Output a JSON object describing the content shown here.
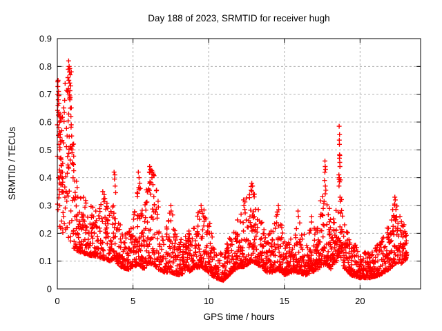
{
  "window": {
    "background": "#ffffff"
  },
  "chart_data": {
    "type": "scatter",
    "title": "Day 188 of 2023, SRMTID for receiver hugh",
    "xlabel": "GPS time / hours",
    "ylabel": "SRMTID / TECUs",
    "xlim": [
      0,
      24
    ],
    "ylim": [
      0,
      0.9
    ],
    "xticks": {
      "values": [
        0,
        5,
        10,
        15,
        20
      ],
      "labels": [
        "0",
        "5",
        "10",
        "15",
        "20"
      ]
    },
    "yticks": {
      "values": [
        0,
        0.1,
        0.2,
        0.3,
        0.4,
        0.5,
        0.6,
        0.7,
        0.8,
        0.9
      ],
      "labels": [
        "0",
        "0.1",
        "0.2",
        "0.3",
        "0.4",
        "0.5",
        "0.6",
        "0.7",
        "0.8",
        "0.9"
      ]
    },
    "grid": {
      "x": [
        5,
        10,
        15,
        20
      ],
      "y": [
        0.1,
        0.2,
        0.3,
        0.4,
        0.5,
        0.6,
        0.7,
        0.8
      ],
      "color": "#b0b0b0",
      "dash": "3,3"
    },
    "marker": {
      "shape": "plus",
      "color": "#ff0000",
      "size": 7,
      "stroke_width": 1.4
    },
    "series_name": "SRMTID",
    "legend": "none",
    "sampling": {
      "t_start": 0.0,
      "t_end": 23.1,
      "step_hours": 0.0166667,
      "seed": 20230188,
      "extra_point_prob": 0.5,
      "streak_prob": 0.08
    },
    "envelope": [
      [
        0.0,
        0.2,
        0.78,
        1.2
      ],
      [
        0.35,
        0.2,
        0.62,
        1.6
      ],
      [
        0.6,
        0.2,
        0.8,
        1.4
      ],
      [
        0.95,
        0.16,
        0.82,
        1.8
      ],
      [
        1.15,
        0.14,
        0.42,
        2.2
      ],
      [
        1.6,
        0.13,
        0.34,
        2.4
      ],
      [
        2.2,
        0.12,
        0.3,
        2.4
      ],
      [
        3.0,
        0.11,
        0.36,
        2.5
      ],
      [
        3.5,
        0.1,
        0.28,
        2.4
      ],
      [
        3.8,
        0.11,
        0.42,
        2.6
      ],
      [
        4.1,
        0.08,
        0.24,
        2.4
      ],
      [
        4.7,
        0.07,
        0.2,
        2.3
      ],
      [
        5.1,
        0.08,
        0.3,
        2.5
      ],
      [
        5.4,
        0.09,
        0.43,
        2.7
      ],
      [
        5.7,
        0.07,
        0.26,
        2.4
      ],
      [
        6.0,
        0.09,
        0.44,
        2.3
      ],
      [
        6.35,
        0.09,
        0.43,
        2.4
      ],
      [
        6.7,
        0.07,
        0.32,
        2.5
      ],
      [
        7.1,
        0.06,
        0.2,
        2.4
      ],
      [
        7.5,
        0.06,
        0.3,
        2.7
      ],
      [
        8.0,
        0.05,
        0.17,
        2.3
      ],
      [
        8.6,
        0.06,
        0.2,
        2.3
      ],
      [
        9.0,
        0.07,
        0.24,
        2.3
      ],
      [
        9.5,
        0.08,
        0.3,
        2.4
      ],
      [
        10.0,
        0.06,
        0.26,
        2.5
      ],
      [
        10.4,
        0.04,
        0.15,
        2.3
      ],
      [
        11.0,
        0.03,
        0.14,
        2.3
      ],
      [
        11.5,
        0.06,
        0.2,
        2.4
      ],
      [
        12.0,
        0.08,
        0.26,
        2.4
      ],
      [
        12.4,
        0.08,
        0.33,
        2.5
      ],
      [
        12.85,
        0.1,
        0.38,
        2.4
      ],
      [
        13.2,
        0.09,
        0.3,
        2.5
      ],
      [
        13.8,
        0.06,
        0.2,
        2.4
      ],
      [
        14.3,
        0.06,
        0.22,
        2.5
      ],
      [
        14.6,
        0.07,
        0.31,
        2.6
      ],
      [
        15.0,
        0.05,
        0.17,
        2.4
      ],
      [
        15.5,
        0.06,
        0.2,
        2.4
      ],
      [
        15.9,
        0.06,
        0.28,
        2.6
      ],
      [
        16.4,
        0.05,
        0.19,
        2.4
      ],
      [
        16.8,
        0.06,
        0.27,
        2.5
      ],
      [
        17.2,
        0.07,
        0.24,
        2.4
      ],
      [
        17.7,
        0.09,
        0.46,
        2.6
      ],
      [
        18.1,
        0.07,
        0.22,
        2.4
      ],
      [
        18.45,
        0.1,
        0.3,
        2.3
      ],
      [
        18.65,
        0.13,
        0.49,
        2.3
      ],
      [
        18.9,
        0.08,
        0.24,
        2.4
      ],
      [
        19.4,
        0.05,
        0.18,
        2.4
      ],
      [
        20.0,
        0.04,
        0.14,
        2.2
      ],
      [
        20.7,
        0.04,
        0.13,
        2.2
      ],
      [
        21.3,
        0.05,
        0.17,
        2.3
      ],
      [
        21.9,
        0.07,
        0.24,
        2.4
      ],
      [
        22.3,
        0.09,
        0.33,
        2.3
      ],
      [
        22.7,
        0.09,
        0.26,
        2.2
      ],
      [
        23.1,
        0.11,
        0.21,
        2.0
      ]
    ],
    "feature_points": [
      [
        0.02,
        0.7
      ],
      [
        0.03,
        0.745
      ],
      [
        0.05,
        0.75
      ],
      [
        0.04,
        0.66
      ],
      [
        0.06,
        0.68
      ],
      [
        0.07,
        0.625
      ],
      [
        0.08,
        0.71
      ],
      [
        0.1,
        0.695
      ],
      [
        0.09,
        0.58
      ],
      [
        0.11,
        0.52
      ],
      [
        0.12,
        0.62
      ],
      [
        0.13,
        0.565
      ],
      [
        0.15,
        0.6
      ],
      [
        0.16,
        0.5
      ],
      [
        0.18,
        0.545
      ],
      [
        0.2,
        0.47
      ],
      [
        0.22,
        0.53
      ],
      [
        0.25,
        0.445
      ],
      [
        0.28,
        0.42
      ],
      [
        0.3,
        0.4
      ],
      [
        0.33,
        0.375
      ],
      [
        0.36,
        0.35
      ],
      [
        0.65,
        0.55
      ],
      [
        0.68,
        0.71
      ],
      [
        0.7,
        0.76
      ],
      [
        0.72,
        0.79
      ],
      [
        0.73,
        0.72
      ],
      [
        0.75,
        0.82
      ],
      [
        0.76,
        0.75
      ],
      [
        0.78,
        0.8
      ],
      [
        0.79,
        0.7
      ],
      [
        0.8,
        0.78
      ],
      [
        0.82,
        0.74
      ],
      [
        0.83,
        0.68
      ],
      [
        0.85,
        0.77
      ],
      [
        0.86,
        0.65
      ],
      [
        0.88,
        0.73
      ],
      [
        0.9,
        0.62
      ],
      [
        0.92,
        0.59
      ],
      [
        0.95,
        0.55
      ],
      [
        0.97,
        0.5
      ],
      [
        1.0,
        0.45
      ],
      [
        3.0,
        0.35
      ],
      [
        3.75,
        0.42
      ],
      [
        3.78,
        0.395
      ],
      [
        3.8,
        0.41
      ],
      [
        3.82,
        0.37
      ],
      [
        5.35,
        0.42
      ],
      [
        5.38,
        0.365
      ],
      [
        5.4,
        0.4
      ],
      [
        5.45,
        0.38
      ],
      [
        6.08,
        0.42
      ],
      [
        6.1,
        0.44
      ],
      [
        6.12,
        0.385
      ],
      [
        6.15,
        0.43
      ],
      [
        6.2,
        0.42
      ],
      [
        6.25,
        0.4
      ],
      [
        6.3,
        0.42
      ],
      [
        6.32,
        0.375
      ],
      [
        6.35,
        0.41
      ],
      [
        7.5,
        0.3
      ],
      [
        7.52,
        0.28
      ],
      [
        9.5,
        0.3
      ],
      [
        9.53,
        0.285
      ],
      [
        12.3,
        0.32
      ],
      [
        12.33,
        0.3
      ],
      [
        12.8,
        0.355
      ],
      [
        12.85,
        0.38
      ],
      [
        12.9,
        0.37
      ],
      [
        12.95,
        0.34
      ],
      [
        14.6,
        0.3
      ],
      [
        14.63,
        0.285
      ],
      [
        15.9,
        0.28
      ],
      [
        15.93,
        0.26
      ],
      [
        16.8,
        0.26
      ],
      [
        17.66,
        0.39
      ],
      [
        17.68,
        0.46
      ],
      [
        17.7,
        0.44
      ],
      [
        17.72,
        0.43
      ],
      [
        17.71,
        0.37
      ],
      [
        17.74,
        0.355
      ],
      [
        18.6,
        0.41
      ],
      [
        18.61,
        0.37
      ],
      [
        18.62,
        0.585
      ],
      [
        18.63,
        0.535
      ],
      [
        18.63,
        0.4
      ],
      [
        18.64,
        0.52
      ],
      [
        18.64,
        0.47
      ],
      [
        18.65,
        0.555
      ],
      [
        18.65,
        0.385
      ],
      [
        18.66,
        0.48
      ],
      [
        18.66,
        0.455
      ],
      [
        18.67,
        0.44
      ],
      [
        18.68,
        0.33
      ],
      [
        22.28,
        0.305
      ],
      [
        22.3,
        0.33
      ],
      [
        22.33,
        0.32
      ],
      [
        23.0,
        0.19
      ],
      [
        23.05,
        0.165
      ]
    ]
  }
}
